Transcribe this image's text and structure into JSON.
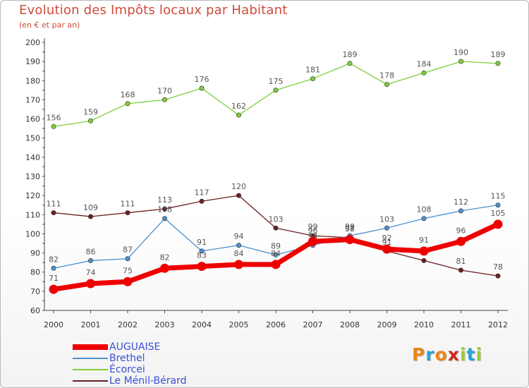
{
  "header": {
    "title": "Evolution des Impôts locaux par Habitant",
    "subtitle": "(en € et par an)"
  },
  "brand": {
    "name": "Proxiti",
    "letters": [
      "P",
      "r",
      "o",
      "x",
      "i",
      "t",
      "i"
    ],
    "letter_colors": [
      "#e8861a",
      "#2a9fd8",
      "#e8861a",
      "#d0281c",
      "#9acd32",
      "#2a9fd8",
      "#9acd32"
    ]
  },
  "chart_data": {
    "type": "line",
    "title": "Evolution des Impôts locaux par Habitant",
    "subtitle": "(en € et par an)",
    "categories": [
      "2000",
      "2001",
      "2002",
      "2003",
      "2004",
      "2005",
      "2006",
      "2007",
      "2008",
      "2009",
      "2010",
      "2011",
      "2012"
    ],
    "ylim": [
      60,
      200
    ],
    "yticks": [
      60,
      70,
      80,
      90,
      100,
      110,
      120,
      130,
      140,
      150,
      160,
      170,
      180,
      190,
      200
    ],
    "grid": false,
    "legend_position": "bottom-left",
    "series": [
      {
        "name": "Écorcei",
        "color": "#7fce3a",
        "values": [
          156,
          159,
          168,
          170,
          176,
          162,
          175,
          181,
          189,
          178,
          184,
          190,
          189
        ],
        "labels": [
          "156",
          "159",
          "168",
          "170",
          "176",
          "162",
          "175",
          "181",
          "189",
          "178",
          "184",
          "190",
          "189"
        ]
      },
      {
        "name": "Le Ménil-Bérard",
        "color": "#6b1f1f",
        "values": [
          111,
          109,
          111,
          113,
          117,
          120,
          103,
          99,
          98,
          91,
          86,
          81,
          78
        ],
        "labels": [
          "111",
          "109",
          "111",
          "113",
          "117",
          "120",
          "103",
          "99",
          "98",
          "91",
          "",
          "81",
          "78"
        ]
      },
      {
        "name": "Brethel",
        "color": "#4b90cf",
        "values": [
          82,
          86,
          87,
          108,
          91,
          94,
          89,
          94,
          99,
          103,
          108,
          112,
          115
        ],
        "labels": [
          "82",
          "86",
          "87",
          "108",
          "91",
          "94",
          "89",
          "94",
          "99",
          "103",
          "108",
          "112",
          "115"
        ]
      },
      {
        "name": "AUGUAISE",
        "color": "#ee0000",
        "values": [
          71,
          74,
          75,
          82,
          83,
          84,
          84,
          96,
          97,
          92,
          91,
          96,
          105
        ],
        "labels": [
          "71",
          "74",
          "75",
          "82",
          "83",
          "84",
          "84",
          "96",
          "97",
          "92",
          "91",
          "96",
          "105"
        ]
      }
    ]
  },
  "legend": [
    {
      "label": "AUGUAISE",
      "color": "#ee0000",
      "thick": true
    },
    {
      "label": "Brethel",
      "color": "#4b90cf",
      "thick": false
    },
    {
      "label": "Écorcei",
      "color": "#7fce3a",
      "thick": false
    },
    {
      "label": "Le Ménil-Bérard",
      "color": "#6b1f1f",
      "thick": false
    }
  ]
}
